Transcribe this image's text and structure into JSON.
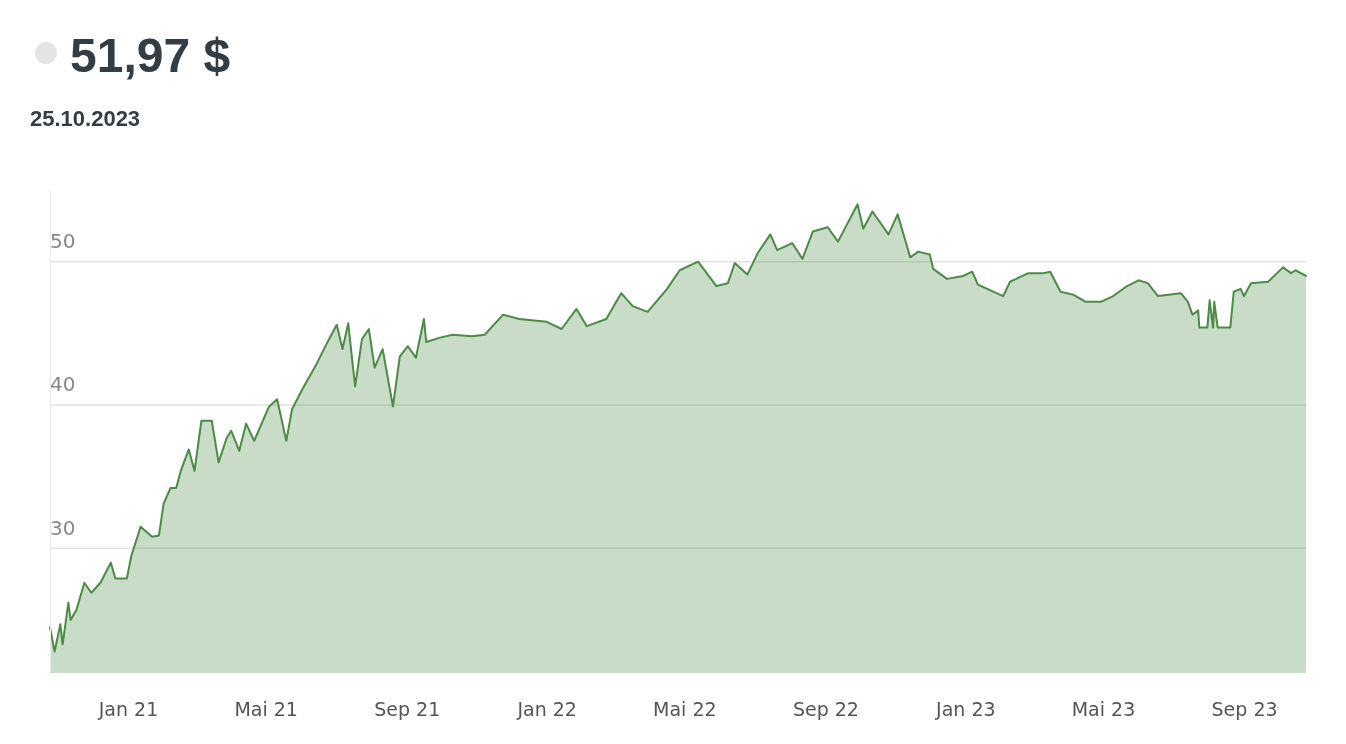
{
  "chart_data": {
    "type": "area",
    "title": "51,97 $",
    "subtitle": "25.10.2023",
    "xlim": [
      "2020-10-25",
      "2023-10-25"
    ],
    "xticks": [
      {
        "value": "2021-01-01",
        "label": "Jan 21"
      },
      {
        "value": "2021-05-01",
        "label": "Mai 21"
      },
      {
        "value": "2021-09-01",
        "label": "Sep 21"
      },
      {
        "value": "2022-01-01",
        "label": "Jan 22"
      },
      {
        "value": "2022-05-01",
        "label": "Mai 22"
      },
      {
        "value": "2022-09-01",
        "label": "Sep 22"
      },
      {
        "value": "2023-01-01",
        "label": "Jan 23"
      },
      {
        "value": "2023-05-01",
        "label": "Mai 23"
      },
      {
        "value": "2023-09-01",
        "label": "Sep 23"
      }
    ],
    "ylim": [
      21.3,
      55
    ],
    "yticks": [
      30,
      40,
      50
    ],
    "grid": "y",
    "x": [
      "2020-10-25",
      "2020-10-29",
      "2020-11-03",
      "2020-11-05",
      "2020-11-10",
      "2020-11-12",
      "2020-11-17",
      "2020-11-24",
      "2020-11-30",
      "2020-12-08",
      "2020-12-17",
      "2020-12-21",
      "2020-12-31",
      "2021-01-04",
      "2021-01-12",
      "2021-01-22",
      "2021-01-28",
      "2021-02-01",
      "2021-02-07",
      "2021-02-12",
      "2021-02-16",
      "2021-02-23",
      "2021-02-28",
      "2021-03-06",
      "2021-03-15",
      "2021-03-21",
      "2021-03-28",
      "2021-04-01",
      "2021-04-08",
      "2021-04-14",
      "2021-04-21",
      "2021-05-04",
      "2021-05-11",
      "2021-05-19",
      "2021-05-24",
      "2021-06-02",
      "2021-06-14",
      "2021-06-24",
      "2021-07-02",
      "2021-07-07",
      "2021-07-12",
      "2021-07-18",
      "2021-07-24",
      "2021-07-30",
      "2021-08-04",
      "2021-08-11",
      "2021-08-20",
      "2021-08-26",
      "2021-09-02",
      "2021-09-09",
      "2021-09-16",
      "2021-09-18",
      "2021-09-30",
      "2021-10-11",
      "2021-10-28",
      "2021-11-08",
      "2021-11-24",
      "2021-12-08",
      "2022-01-01",
      "2022-01-14",
      "2022-01-27",
      "2022-02-05",
      "2022-02-22",
      "2022-03-07",
      "2022-03-17",
      "2022-03-30",
      "2022-04-16",
      "2022-04-27",
      "2022-05-13",
      "2022-05-29",
      "2022-06-08",
      "2022-06-14",
      "2022-06-25",
      "2022-07-04",
      "2022-07-15",
      "2022-07-21",
      "2022-08-03",
      "2022-08-12",
      "2022-08-21",
      "2022-09-03",
      "2022-09-12",
      "2022-09-29",
      "2022-10-04",
      "2022-10-12",
      "2022-10-26",
      "2022-11-03",
      "2022-11-14",
      "2022-11-21",
      "2022-12-01",
      "2022-12-04",
      "2022-12-16",
      "2022-12-30",
      "2023-01-07",
      "2023-01-12",
      "2023-02-03",
      "2023-02-09",
      "2023-02-25",
      "2023-03-10",
      "2023-03-16",
      "2023-03-25",
      "2023-04-05",
      "2023-04-16",
      "2023-04-29",
      "2023-05-10",
      "2023-05-22",
      "2023-06-01",
      "2023-06-09",
      "2023-06-18",
      "2023-07-08",
      "2023-07-14",
      "2023-07-18",
      "2023-07-23",
      "2023-07-24",
      "2023-07-31",
      "2023-08-02",
      "2023-08-05",
      "2023-08-06",
      "2023-08-09",
      "2023-08-20",
      "2023-08-23",
      "2023-08-29",
      "2023-09-01",
      "2023-09-07",
      "2023-09-22",
      "2023-10-05",
      "2023-10-12",
      "2023-10-16",
      "2023-10-25"
    ],
    "series": [
      {
        "color": "#4c8b45",
        "values": [
          24.5,
          22.8,
          24.7,
          23.3,
          26.2,
          25.0,
          25.7,
          27.6,
          26.9,
          27.6,
          29.0,
          27.9,
          27.9,
          29.5,
          31.5,
          30.8,
          30.9,
          33.1,
          34.2,
          34.2,
          35.4,
          36.9,
          35.4,
          38.9,
          38.9,
          36.0,
          37.7,
          38.2,
          36.8,
          38.7,
          37.5,
          39.9,
          40.4,
          37.5,
          39.7,
          41.1,
          42.8,
          44.4,
          45.6,
          43.9,
          45.7,
          41.3,
          44.6,
          45.3,
          42.6,
          43.9,
          39.9,
          43.4,
          44.1,
          43.3,
          46.0,
          44.4,
          44.7,
          44.9,
          44.8,
          44.9,
          46.3,
          46.0,
          45.8,
          45.3,
          46.7,
          45.5,
          46.0,
          47.8,
          46.9,
          46.5,
          48.1,
          49.4,
          50.0,
          48.3,
          48.5,
          49.9,
          49.1,
          50.6,
          51.9,
          50.8,
          51.3,
          50.2,
          52.1,
          52.4,
          51.4,
          54.0,
          52.3,
          53.5,
          51.9,
          53.3,
          50.3,
          50.7,
          50.5,
          49.5,
          48.8,
          49.0,
          49.3,
          48.4,
          47.6,
          48.6,
          49.2,
          49.2,
          49.3,
          47.9,
          47.7,
          47.2,
          47.2,
          47.6,
          48.3,
          48.7,
          48.5,
          47.6,
          47.8,
          47.2,
          46.3,
          46.6,
          45.4,
          45.4,
          47.3,
          45.4,
          47.2,
          45.4,
          45.4,
          47.9,
          48.1,
          47.6,
          48.5,
          48.6,
          49.6,
          49.2,
          49.4,
          49.0
        ]
      }
    ]
  }
}
